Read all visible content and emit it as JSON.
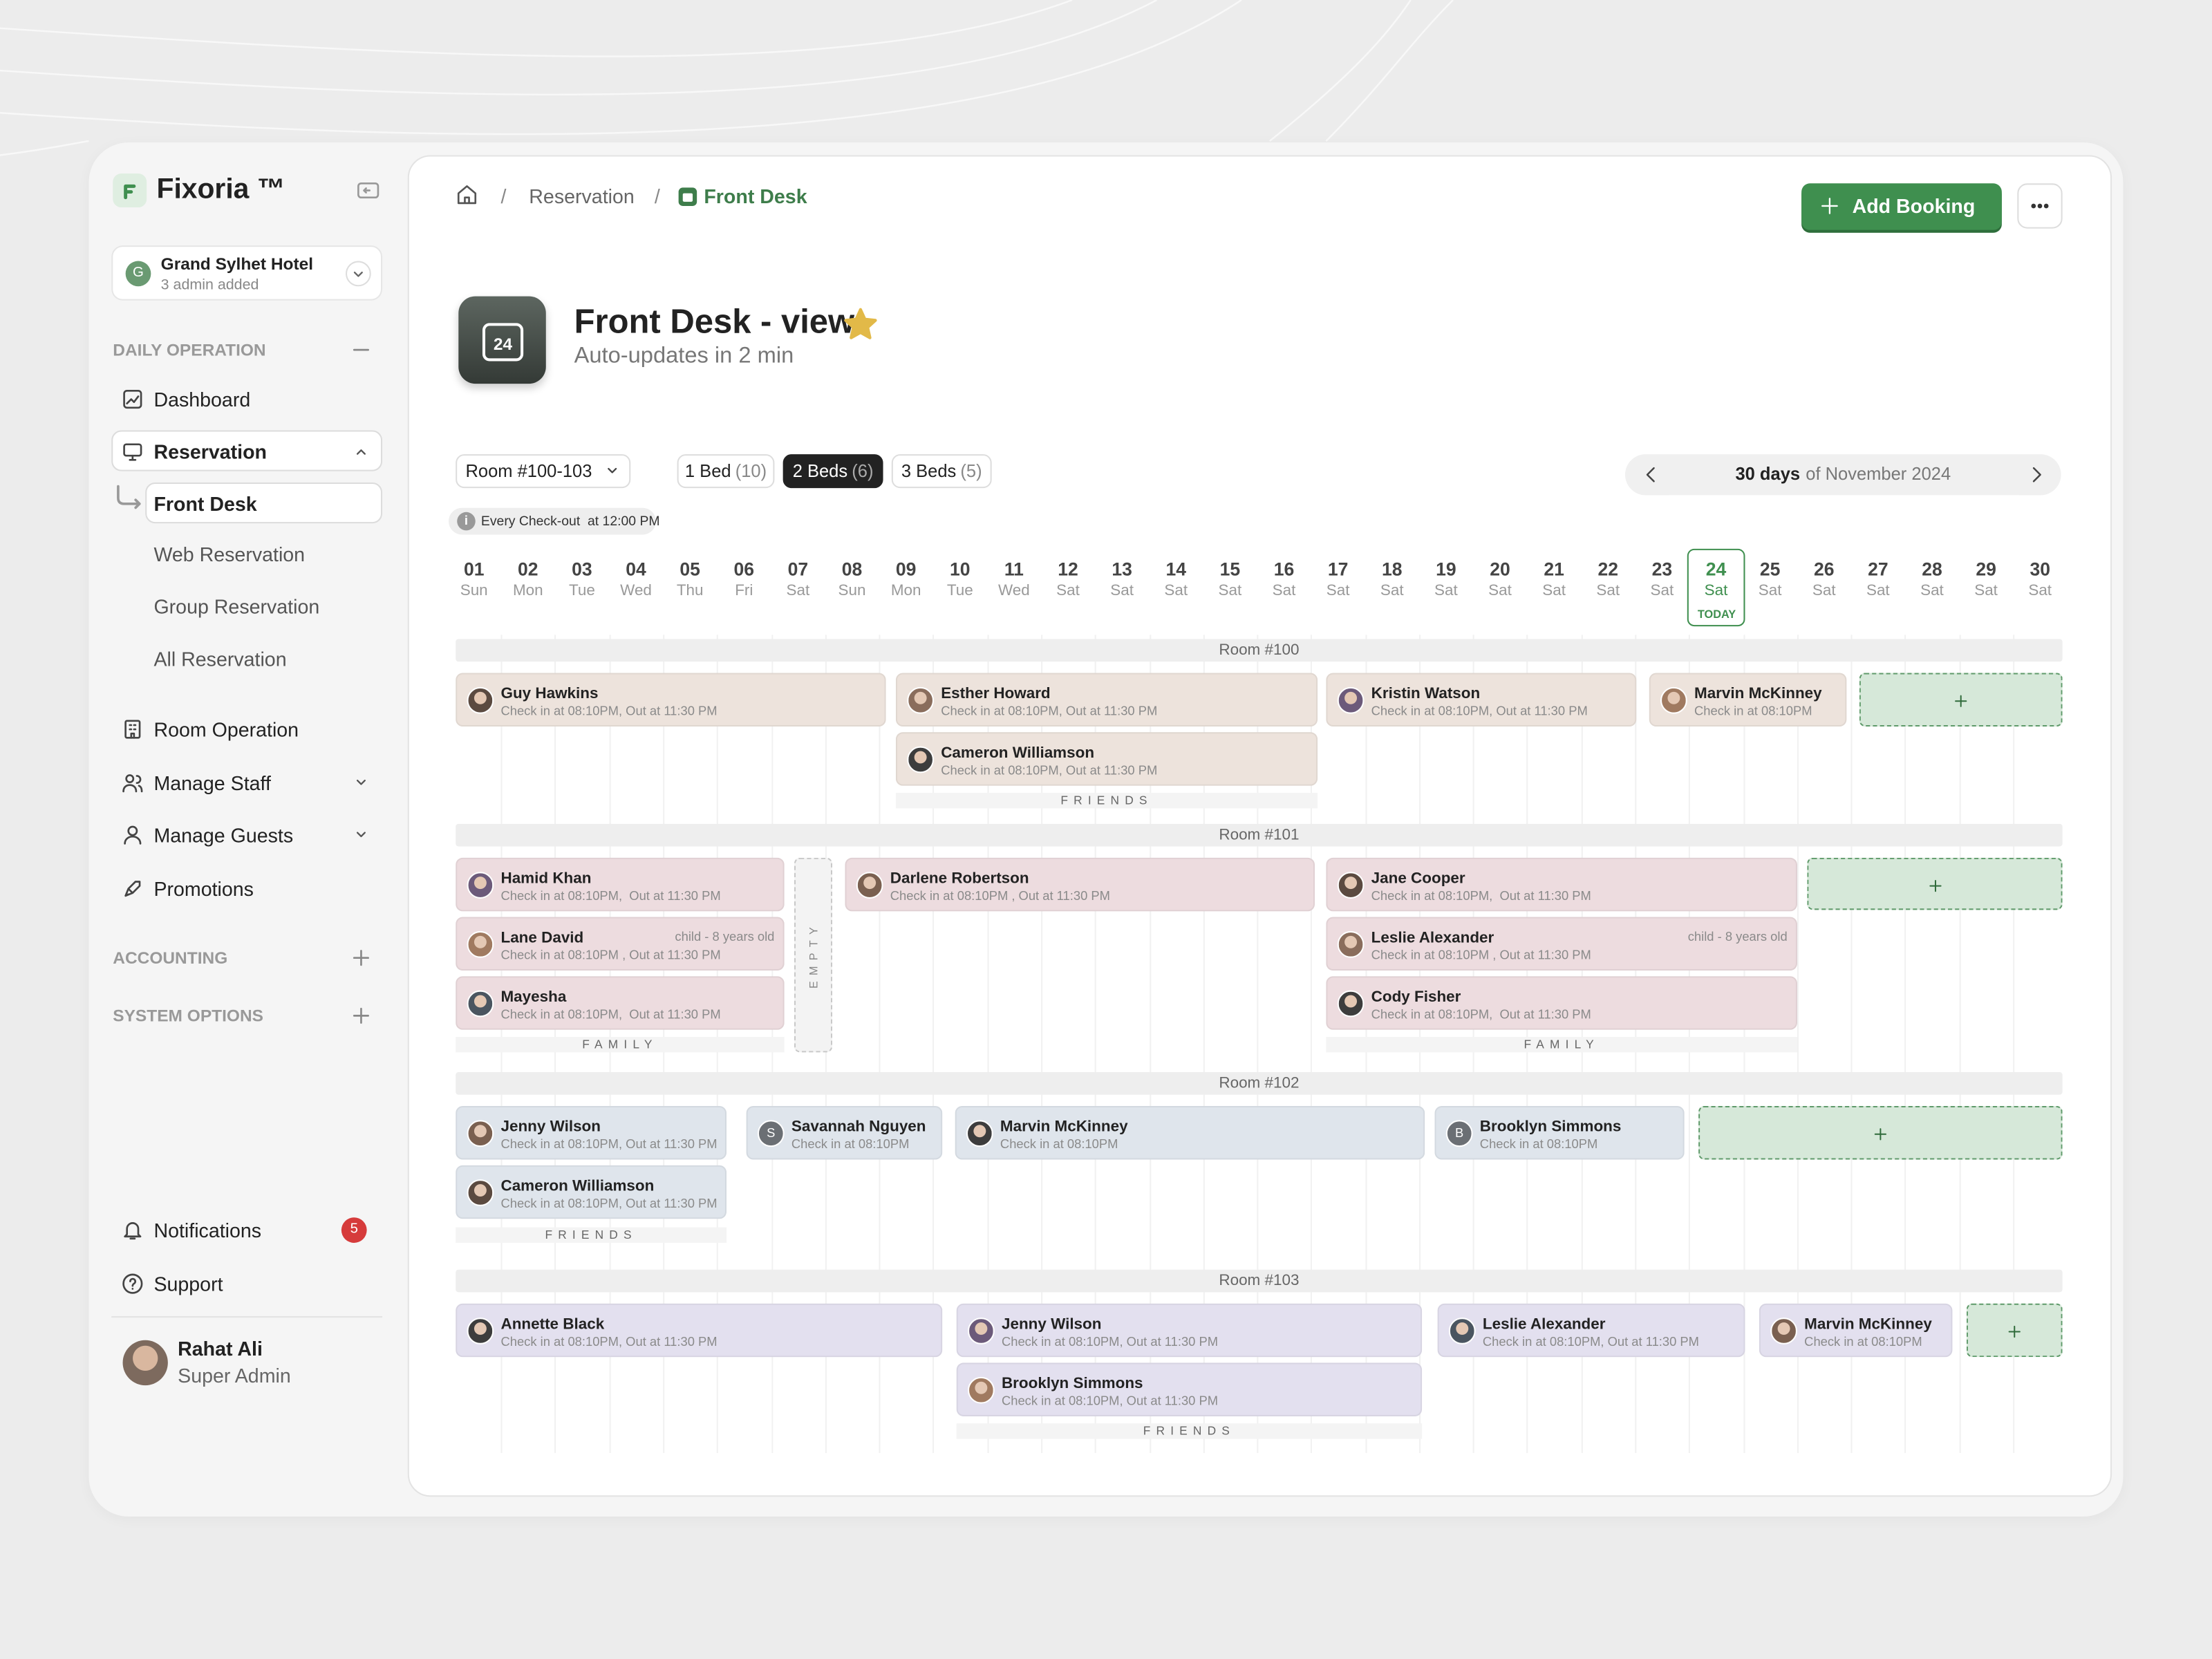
{
  "sidebar": {
    "brand": "Fixoria ™",
    "hotel": {
      "initial": "G",
      "name": "Grand Sylhet Hotel",
      "admins": "3 admin added"
    },
    "daily_operation": "DAILY OPERATION",
    "items": [
      "Dashboard",
      "Reservation",
      "Front Desk",
      "Web Reservation",
      "Group Reservation",
      "All Reservation",
      "Room Operation",
      "Manage Staff",
      "Manage Guests",
      "Promotions"
    ],
    "accounting": "ACCOUNTING",
    "system_options": "SYSTEM OPTIONS",
    "notifications": {
      "label": "Notifications",
      "count": 5
    },
    "support": "Support",
    "user": {
      "name": "Rahat Ali",
      "role": "Super Admin"
    }
  },
  "header": {
    "breadcrumbs": [
      "Reservation",
      "Front Desk"
    ],
    "add_booking": "Add Booking",
    "icon_day": "24",
    "title": "Front Desk - view",
    "subtitle": "Auto-updates in 2 min"
  },
  "filters": {
    "room_range": "Room #100-103",
    "tabs": [
      {
        "label": "1 Bed",
        "count": "(10)"
      },
      {
        "label": "2 Beds",
        "count": "(6)",
        "active": true
      },
      {
        "label": "3 Beds",
        "count": "(5)"
      }
    ],
    "period": {
      "days": "30 days",
      "month": "of November 2024"
    },
    "checkout_note": "Every Check-out  at 12:00 PM"
  },
  "calendar": {
    "today_label": "TODAY",
    "days": [
      {
        "date": "01",
        "weekday": "Sun"
      },
      {
        "date": "02",
        "weekday": "Mon"
      },
      {
        "date": "03",
        "weekday": "Tue"
      },
      {
        "date": "04",
        "weekday": "Wed"
      },
      {
        "date": "05",
        "weekday": "Thu"
      },
      {
        "date": "06",
        "weekday": "Fri"
      },
      {
        "date": "07",
        "weekday": "Sat"
      },
      {
        "date": "08",
        "weekday": "Sun"
      },
      {
        "date": "09",
        "weekday": "Mon"
      },
      {
        "date": "10",
        "weekday": "Tue"
      },
      {
        "date": "11",
        "weekday": "Wed"
      },
      {
        "date": "12",
        "weekday": "Sat"
      },
      {
        "date": "13",
        "weekday": "Sat"
      },
      {
        "date": "14",
        "weekday": "Sat"
      },
      {
        "date": "15",
        "weekday": "Sat"
      },
      {
        "date": "16",
        "weekday": "Sat"
      },
      {
        "date": "17",
        "weekday": "Sat"
      },
      {
        "date": "18",
        "weekday": "Sat"
      },
      {
        "date": "19",
        "weekday": "Sat"
      },
      {
        "date": "20",
        "weekday": "Sat"
      },
      {
        "date": "21",
        "weekday": "Sat"
      },
      {
        "date": "22",
        "weekday": "Sat"
      },
      {
        "date": "23",
        "weekday": "Sat"
      },
      {
        "date": "24",
        "weekday": "Sat",
        "today": true
      },
      {
        "date": "25",
        "weekday": "Sat"
      },
      {
        "date": "26",
        "weekday": "Sat"
      },
      {
        "date": "27",
        "weekday": "Sat"
      },
      {
        "date": "28",
        "weekday": "Sat"
      },
      {
        "date": "29",
        "weekday": "Sat"
      },
      {
        "date": "30",
        "weekday": "Sat"
      }
    ],
    "rooms": [
      {
        "name": "Room #100",
        "bookings": [
          {
            "guest": "Guy Hawkins",
            "detail": "Check in at 08:10PM, Out at 11:30 PM"
          },
          {
            "guest": "Esther Howard",
            "detail": "Check in at 08:10PM, Out at 11:30 PM"
          },
          {
            "guest": "Cameron Williamson",
            "detail": "Check in at 08:10PM, Out at 11:30 PM"
          },
          {
            "guest": "Kristin Watson",
            "detail": "Check in at 08:10PM, Out at 11:30 PM"
          },
          {
            "guest": "Marvin McKinney",
            "detail": "Check in at 08:10PM"
          }
        ],
        "groups": [
          "FRIENDS"
        ]
      },
      {
        "name": "Room #101",
        "bookings": [
          {
            "guest": "Hamid Khan",
            "detail": "Check in at 08:10PM,  Out at 11:30 PM"
          },
          {
            "guest": "Lane David",
            "detail": "Check in at 08:10PM , Out at 11:30 PM",
            "note": "child - 8 years old"
          },
          {
            "guest": "Mayesha",
            "detail": "Check in at 08:10PM,  Out at 11:30 PM"
          },
          {
            "guest": "Darlene Robertson",
            "detail": "Check in at 08:10PM , Out at 11:30 PM"
          },
          {
            "guest": "Jane Cooper",
            "detail": "Check in at 08:10PM,  Out at 11:30 PM"
          },
          {
            "guest": "Leslie Alexander",
            "detail": "Check in at 08:10PM , Out at 11:30 PM",
            "note": "child - 8 years old"
          },
          {
            "guest": "Cody Fisher",
            "detail": "Check in at 08:10PM,  Out at 11:30 PM"
          }
        ],
        "groups": [
          "FAMILY",
          "FAMILY"
        ],
        "empty": "EMPTY"
      },
      {
        "name": "Room #102",
        "bookings": [
          {
            "guest": "Jenny Wilson",
            "detail": "Check in at 08:10PM, Out at 11:30 PM"
          },
          {
            "guest": "Cameron Williamson",
            "detail": "Check in at 08:10PM, Out at 11:30 PM"
          },
          {
            "guest": "Savannah Nguyen",
            "detail": "Check in at 08:10PM",
            "initial": "S"
          },
          {
            "guest": "Marvin McKinney",
            "detail": "Check in at 08:10PM"
          },
          {
            "guest": "Brooklyn Simmons",
            "detail": "Check in at 08:10PM",
            "initial": "B"
          }
        ],
        "groups": [
          "FRIENDS"
        ]
      },
      {
        "name": "Room #103",
        "bookings": [
          {
            "guest": "Annette Black",
            "detail": "Check in at 08:10PM, Out at 11:30 PM"
          },
          {
            "guest": "Jenny Wilson",
            "detail": "Check in at 08:10PM, Out at 11:30 PM"
          },
          {
            "guest": "Brooklyn Simmons",
            "detail": "Check in at 08:10PM, Out at 11:30 PM"
          },
          {
            "guest": "Leslie Alexander",
            "detail": "Check in at 08:10PM, Out at 11:30 PM"
          },
          {
            "guest": "Marvin McKinney",
            "detail": "Check in at 08:10PM"
          }
        ],
        "groups": [
          "FRIENDS"
        ]
      }
    ]
  }
}
